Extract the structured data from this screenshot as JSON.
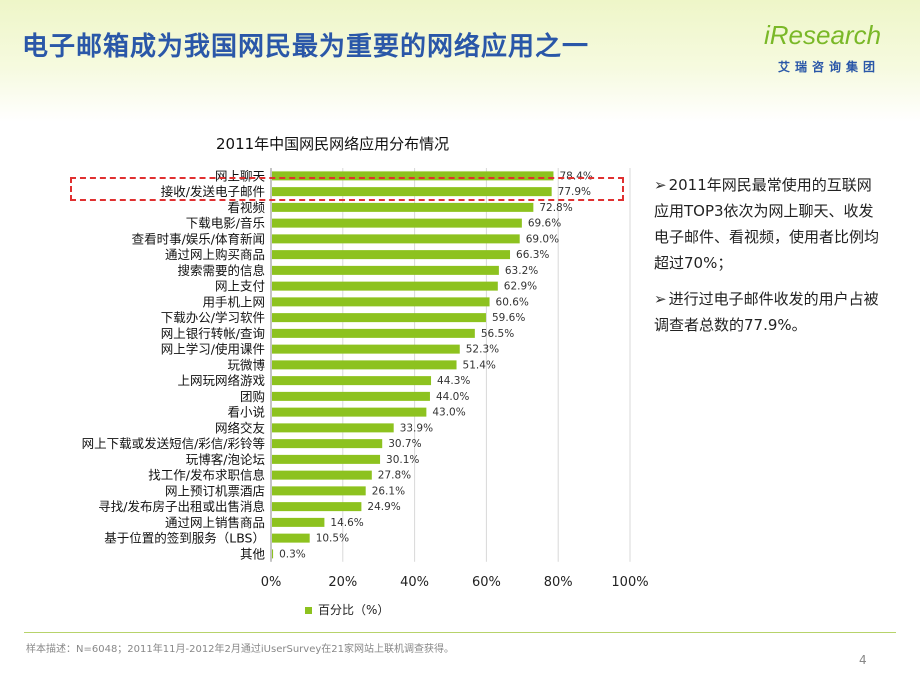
{
  "slide": {
    "title": "电子邮箱成为我国网民最为重要的网络应用之一",
    "logo_main": "iResearch",
    "logo_sub": "艾瑞咨询集团",
    "footnote": "样本描述：N=6048；2011年11月-2012年2月通过iUserSurvey在21家网站上联机调查获得。",
    "page_number": "4",
    "notes": [
      "2011年网民最常使用的互联网应用TOP3依次为网上聊天、收发电子邮件、看视频，使用者比例均超过70%；",
      "进行过电子邮件收发的用户占被调查者总数的77.9%。"
    ],
    "bullet_symbol": "➢"
  },
  "colors": {
    "bar": "#8dc21f",
    "title": "#2a57a8",
    "highlight": "#e03030"
  },
  "chart_data": {
    "type": "bar",
    "orientation": "horizontal",
    "title": "2011年中国网民网络应用分布情况",
    "categories": [
      "网上聊天",
      "接收/发送电子邮件",
      "看视频",
      "下载电影/音乐",
      "查看时事/娱乐/体育新闻",
      "通过网上购买商品",
      "搜索需要的信息",
      "网上支付",
      "用手机上网",
      "下载办公/学习软件",
      "网上银行转帐/查询",
      "网上学习/使用课件",
      "玩微博",
      "上网玩网络游戏",
      "团购",
      "看小说",
      "网络交友",
      "网上下载或发送短信/彩信/彩铃等",
      "玩博客/泡论坛",
      "找工作/发布求职信息",
      "网上预订机票酒店",
      "寻找/发布房子出租或出售消息",
      "通过网上销售商品",
      "基于位置的签到服务（LBS）",
      "其他"
    ],
    "series": [
      {
        "name": "百分比（%）",
        "values": [
          78.4,
          77.9,
          72.8,
          69.6,
          69.0,
          66.3,
          63.2,
          62.9,
          60.6,
          59.6,
          56.5,
          52.3,
          51.4,
          44.3,
          44.0,
          43.0,
          33.9,
          30.7,
          30.1,
          27.8,
          26.1,
          24.9,
          14.6,
          10.5,
          0.3
        ],
        "labels": [
          "78.4%",
          "77.9%",
          "72.8%",
          "69.6%",
          "69.0%",
          "66.3%",
          "63.2%",
          "62.9%",
          "60.6%",
          "59.6%",
          "56.5%",
          "52.3%",
          "51.4%",
          "44.3%",
          "44.0%",
          "43.0%",
          "33.9%",
          "30.7%",
          "30.1%",
          "27.8%",
          "26.1%",
          "24.9%",
          "14.6%",
          "10.5%",
          "0.3%"
        ]
      }
    ],
    "xlim": [
      0,
      100
    ],
    "xticks": [
      "0%",
      "20%",
      "40%",
      "60%",
      "80%",
      "100%"
    ],
    "grid": true,
    "legend": "bottom",
    "highlighted_category": "接收/发送电子邮件"
  }
}
